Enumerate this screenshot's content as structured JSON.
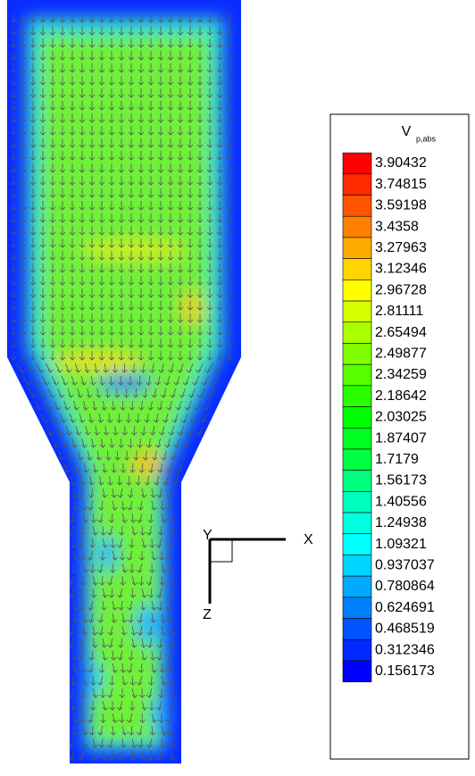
{
  "chart_data": {
    "type": "contour",
    "legend_title": "V",
    "legend_title_subscript": "p,abs",
    "levels": [
      3.90432,
      3.74815,
      3.59198,
      3.4358,
      3.27963,
      3.12346,
      2.96728,
      2.81111,
      2.65494,
      2.49877,
      2.34259,
      2.18642,
      2.03025,
      1.87407,
      1.7179,
      1.56173,
      1.40556,
      1.24938,
      1.09321,
      0.937037,
      0.780864,
      0.624691,
      0.468519,
      0.312346,
      0.156173
    ],
    "colors": [
      "#ff0000",
      "#ff2a00",
      "#ff5500",
      "#ff8000",
      "#ffaa00",
      "#ffd400",
      "#ffff00",
      "#d4ff00",
      "#aaff00",
      "#80ff00",
      "#55ff00",
      "#2aff00",
      "#00ff00",
      "#00ff20",
      "#00ff40",
      "#00ff80",
      "#00ffbf",
      "#00ffdf",
      "#00ffff",
      "#00d4ff",
      "#00aaff",
      "#0080ff",
      "#0055ff",
      "#002aff",
      "#0000ff"
    ],
    "axes": {
      "x": "X",
      "y": "Y",
      "z": "Z"
    }
  }
}
